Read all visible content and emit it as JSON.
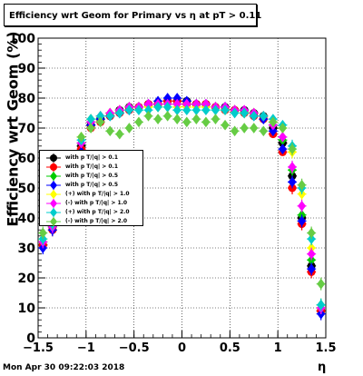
{
  "header": {
    "title": "Efficiency wrt Geom for Primary vs   η at pT > 0.11"
  },
  "footer": {
    "timestamp": "Mon Apr 30 09:22:03 2018"
  },
  "chart_data": {
    "type": "scatter",
    "title": "Efficiency wrt Geom for Primary vs   η at pT > 0.11",
    "xlabel": "η",
    "ylabel": "Efficiency wrt Geom (%)",
    "xlim": [
      -1.5,
      1.5
    ],
    "ylim": [
      0,
      100
    ],
    "x_ticks": [
      "−1.5",
      "−1",
      "−0.5",
      "0",
      "0.5",
      "1",
      "1.5"
    ],
    "y_ticks": [
      "0",
      "10",
      "20",
      "30",
      "40",
      "50",
      "60",
      "70",
      "80",
      "90",
      "100"
    ],
    "grid": true,
    "legend_position": "left-middle",
    "x": [
      -1.45,
      -1.35,
      -1.25,
      -1.15,
      -1.05,
      -0.95,
      -0.85,
      -0.75,
      -0.65,
      -0.55,
      -0.45,
      -0.35,
      -0.25,
      -0.15,
      -0.05,
      0.05,
      0.15,
      0.25,
      0.35,
      0.45,
      0.55,
      0.65,
      0.75,
      0.85,
      0.95,
      1.05,
      1.15,
      1.25,
      1.35,
      1.45
    ],
    "series": [
      {
        "name": "with p T/|q| > 0.1",
        "color": "#000000",
        "marker": "circle",
        "values": [
          31,
          37,
          43,
          52,
          64,
          71,
          73,
          74,
          76,
          77,
          77,
          78,
          78,
          79,
          79,
          79,
          78,
          78,
          77,
          77,
          76,
          76,
          75,
          74,
          70,
          65,
          54,
          40,
          24,
          9
        ]
      },
      {
        "name": "with p T/|q| > 0.1",
        "color": "#ff0000",
        "marker": "circle",
        "values": [
          31,
          36,
          42,
          51,
          63,
          70,
          72,
          74,
          75,
          76,
          77,
          78,
          78,
          79,
          79,
          78,
          78,
          78,
          77,
          76,
          76,
          75,
          74,
          73,
          68,
          62,
          50,
          38,
          22,
          9
        ]
      },
      {
        "name": "with p T/|q| > 0.5",
        "color": "#00cc00",
        "marker": "diamond",
        "values": [
          32,
          37,
          44,
          53,
          65,
          72,
          73,
          75,
          76,
          77,
          77,
          77,
          78,
          78,
          78,
          78,
          78,
          77,
          77,
          77,
          76,
          75,
          75,
          74,
          71,
          66,
          56,
          41,
          26,
          11
        ]
      },
      {
        "name": "with p T/|q| > 0.5",
        "color": "#0000ff",
        "marker": "diamond",
        "values": [
          30,
          36,
          42,
          51,
          62,
          71,
          73,
          74,
          75,
          76,
          77,
          78,
          79,
          80,
          80,
          79,
          78,
          78,
          77,
          77,
          76,
          75,
          74,
          73,
          69,
          63,
          52,
          39,
          23,
          8
        ]
      },
      {
        "name": "(+) with p T/|q| > 1.0",
        "color": "#ffff00",
        "marker": "diamond",
        "values": [
          33,
          38,
          45,
          54,
          67,
          73,
          74,
          75,
          76,
          77,
          77,
          77,
          77,
          77,
          77,
          77,
          77,
          77,
          77,
          76,
          76,
          75,
          75,
          74,
          72,
          70,
          62,
          48,
          30,
          10
        ]
      },
      {
        "name": "(-) with p T/|q| > 1.0",
        "color": "#ff00ff",
        "marker": "diamond",
        "values": [
          32,
          37,
          44,
          53,
          65,
          72,
          74,
          75,
          76,
          77,
          77,
          78,
          78,
          78,
          78,
          78,
          78,
          78,
          77,
          77,
          76,
          76,
          75,
          74,
          71,
          67,
          57,
          44,
          28,
          10
        ]
      },
      {
        "name": "(+) with p T/|q| > 2.0",
        "color": "#00cccc",
        "marker": "diamond",
        "values": [
          33,
          38,
          45,
          55,
          66,
          73,
          74,
          74,
          75,
          76,
          76,
          76,
          77,
          77,
          76,
          76,
          76,
          76,
          76,
          76,
          75,
          75,
          74,
          74,
          73,
          71,
          64,
          50,
          33,
          11
        ]
      },
      {
        "name": "(-) with p T/|q| > 2.0",
        "color": "#66cc44",
        "marker": "diamond",
        "values": [
          35,
          40,
          46,
          56,
          67,
          70,
          72,
          69,
          68,
          70,
          72,
          74,
          73,
          74,
          73,
          72,
          73,
          72,
          73,
          71,
          69,
          70,
          70,
          69,
          72,
          70,
          63,
          51,
          35,
          18
        ]
      }
    ]
  }
}
